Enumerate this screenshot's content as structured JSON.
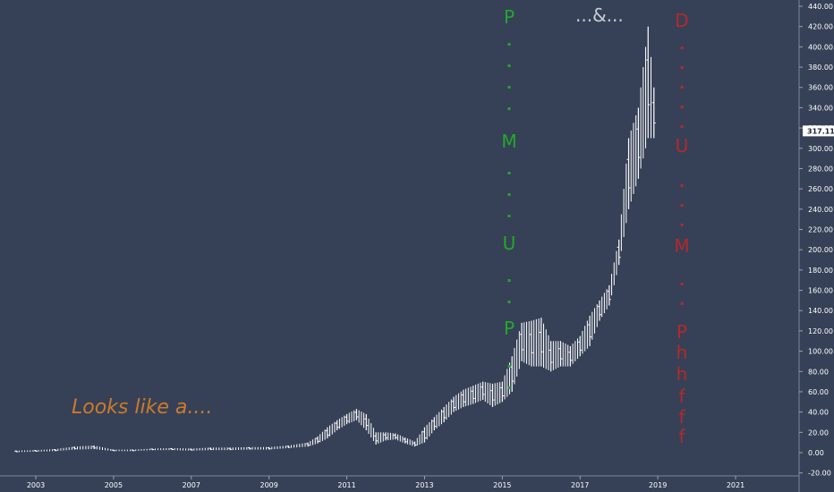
{
  "chart_data": {
    "type": "ohlc",
    "title": "",
    "xlabel": "",
    "ylabel": "",
    "x_ticks": [
      "2003",
      "2005",
      "2007",
      "2009",
      "2011",
      "2013",
      "2015",
      "2017",
      "2019",
      "2021"
    ],
    "y_ticks": [
      "-20.00",
      "0.00",
      "20.00",
      "40.00",
      "60.00",
      "80.00",
      "100.00",
      "120.00",
      "140.00",
      "160.00",
      "180.00",
      "200.00",
      "220.00",
      "240.00",
      "260.00",
      "280.00",
      "300.00",
      "320.00",
      "340.00",
      "360.00",
      "380.00",
      "400.00",
      "420.00",
      "440.00"
    ],
    "ylim": [
      -20,
      440
    ],
    "xlim": [
      2002.3,
      2023.0
    ],
    "last_price": "317.11",
    "series": [
      {
        "name": "",
        "points": [
          {
            "x": 2002.5,
            "low": 0.5,
            "high": 2
          },
          {
            "x": 2003.0,
            "low": 1,
            "high": 2.5
          },
          {
            "x": 2003.5,
            "low": 1.5,
            "high": 3.5
          },
          {
            "x": 2004.0,
            "low": 3,
            "high": 6
          },
          {
            "x": 2004.5,
            "low": 3.5,
            "high": 7
          },
          {
            "x": 2005.0,
            "low": 1.5,
            "high": 3
          },
          {
            "x": 2005.5,
            "low": 1.5,
            "high": 3
          },
          {
            "x": 2006.0,
            "low": 2.5,
            "high": 4
          },
          {
            "x": 2006.5,
            "low": 2.5,
            "high": 4.5
          },
          {
            "x": 2007.0,
            "low": 2,
            "high": 4
          },
          {
            "x": 2007.5,
            "low": 2.5,
            "high": 5
          },
          {
            "x": 2008.0,
            "low": 2.5,
            "high": 5
          },
          {
            "x": 2008.5,
            "low": 3,
            "high": 5.5
          },
          {
            "x": 2009.0,
            "low": 3,
            "high": 5.5
          },
          {
            "x": 2009.5,
            "low": 4.5,
            "high": 7
          },
          {
            "x": 2010.0,
            "low": 6,
            "high": 10
          },
          {
            "x": 2010.25,
            "low": 9,
            "high": 16
          },
          {
            "x": 2010.5,
            "low": 14,
            "high": 25
          },
          {
            "x": 2010.75,
            "low": 22,
            "high": 32
          },
          {
            "x": 2011.0,
            "low": 28,
            "high": 38
          },
          {
            "x": 2011.25,
            "low": 32,
            "high": 43
          },
          {
            "x": 2011.5,
            "low": 22,
            "high": 38
          },
          {
            "x": 2011.75,
            "low": 8,
            "high": 20
          },
          {
            "x": 2012.0,
            "low": 12,
            "high": 20
          },
          {
            "x": 2012.25,
            "low": 13,
            "high": 19
          },
          {
            "x": 2012.5,
            "low": 9,
            "high": 15
          },
          {
            "x": 2012.75,
            "low": 6,
            "high": 11
          },
          {
            "x": 2013.0,
            "low": 10,
            "high": 25
          },
          {
            "x": 2013.25,
            "low": 22,
            "high": 35
          },
          {
            "x": 2013.5,
            "low": 30,
            "high": 45
          },
          {
            "x": 2013.75,
            "low": 40,
            "high": 55
          },
          {
            "x": 2014.0,
            "low": 45,
            "high": 62
          },
          {
            "x": 2014.25,
            "low": 48,
            "high": 66
          },
          {
            "x": 2014.5,
            "low": 52,
            "high": 70
          },
          {
            "x": 2014.75,
            "low": 45,
            "high": 68
          },
          {
            "x": 2015.0,
            "low": 50,
            "high": 70
          },
          {
            "x": 2015.25,
            "low": 60,
            "high": 95
          },
          {
            "x": 2015.5,
            "low": 90,
            "high": 128
          },
          {
            "x": 2015.75,
            "low": 85,
            "high": 130
          },
          {
            "x": 2016.0,
            "low": 85,
            "high": 133
          },
          {
            "x": 2016.25,
            "low": 80,
            "high": 110
          },
          {
            "x": 2016.5,
            "low": 85,
            "high": 110
          },
          {
            "x": 2016.75,
            "low": 85,
            "high": 105
          },
          {
            "x": 2017.0,
            "low": 95,
            "high": 115
          },
          {
            "x": 2017.25,
            "low": 105,
            "high": 135
          },
          {
            "x": 2017.5,
            "low": 130,
            "high": 150
          },
          {
            "x": 2017.75,
            "low": 145,
            "high": 165
          },
          {
            "x": 2018.0,
            "low": 185,
            "high": 210
          },
          {
            "x": 2018.25,
            "low": 240,
            "high": 310
          },
          {
            "x": 2018.5,
            "low": 270,
            "high": 340
          },
          {
            "x": 2018.75,
            "low": 310,
            "high": 420
          },
          {
            "x": 2018.9,
            "low": 310,
            "high": 360
          }
        ]
      }
    ]
  },
  "annotations": {
    "looks": "Looks like a....",
    "and": "...&...",
    "left_letters": [
      "P",
      "M",
      "U",
      "P"
    ],
    "right_letters": [
      "D",
      "U",
      "M",
      "P",
      "h",
      "h",
      "f",
      "f",
      "f"
    ],
    "colors": {
      "green": "#22a82b",
      "red": "#b5292a",
      "orange": "#cc7a2a",
      "grey": "#c9ccd3",
      "bars": "#ffffff",
      "background": "#364157"
    }
  }
}
